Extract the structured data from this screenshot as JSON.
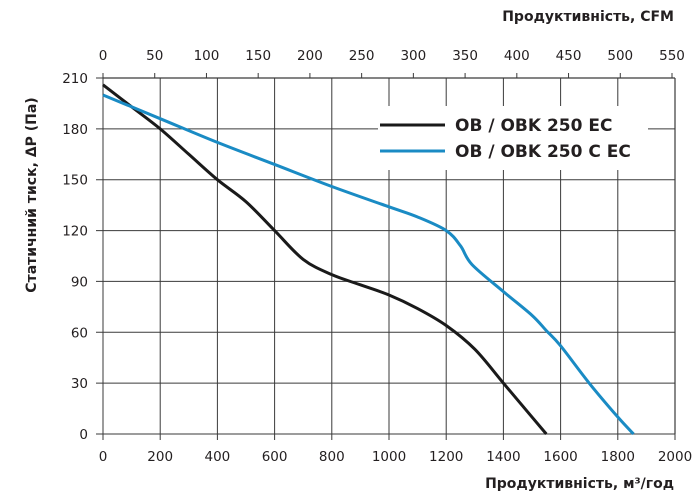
{
  "chart_data": {
    "type": "line",
    "title": "",
    "xlabel": "Продуктивність, м³/год",
    "xlabel_secondary": "Продуктивність, CFM",
    "ylabel": "Статичний тиск, ΔP (Па)",
    "xlim": [
      0,
      2000
    ],
    "ylim": [
      0,
      210
    ],
    "x_secondary_lim": [
      0,
      550
    ],
    "grid": true,
    "legend_position": "upper right (inside plot)",
    "x_ticks": [
      0,
      200,
      400,
      600,
      800,
      1000,
      1200,
      1400,
      1600,
      1800,
      2000
    ],
    "y_ticks": [
      0,
      30,
      60,
      90,
      120,
      150,
      180,
      210
    ],
    "x_secondary_ticks": [
      0,
      50,
      100,
      150,
      200,
      250,
      300,
      350,
      400,
      450,
      500,
      550
    ],
    "series": [
      {
        "name": "OB / OBK 250 EC",
        "color": "#1a1a1a",
        "x": [
          0,
          100,
          200,
          300,
          400,
          500,
          600,
          700,
          800,
          900,
          1000,
          1100,
          1200,
          1300,
          1400,
          1500,
          1550
        ],
        "values": [
          206,
          193,
          180,
          165,
          150,
          137,
          120,
          103,
          94,
          88,
          82,
          74,
          64,
          50,
          30,
          10,
          0
        ]
      },
      {
        "name": "OB / OBK 250 C EC",
        "color": "#1a8bc4",
        "x": [
          0,
          200,
          400,
          600,
          800,
          1000,
          1100,
          1200,
          1250,
          1290,
          1400,
          1500,
          1550,
          1600,
          1700,
          1800,
          1855
        ],
        "values": [
          200,
          186,
          172,
          159,
          146,
          134,
          128,
          120,
          111,
          100,
          84,
          70,
          61,
          52,
          30,
          10,
          0
        ]
      }
    ]
  }
}
